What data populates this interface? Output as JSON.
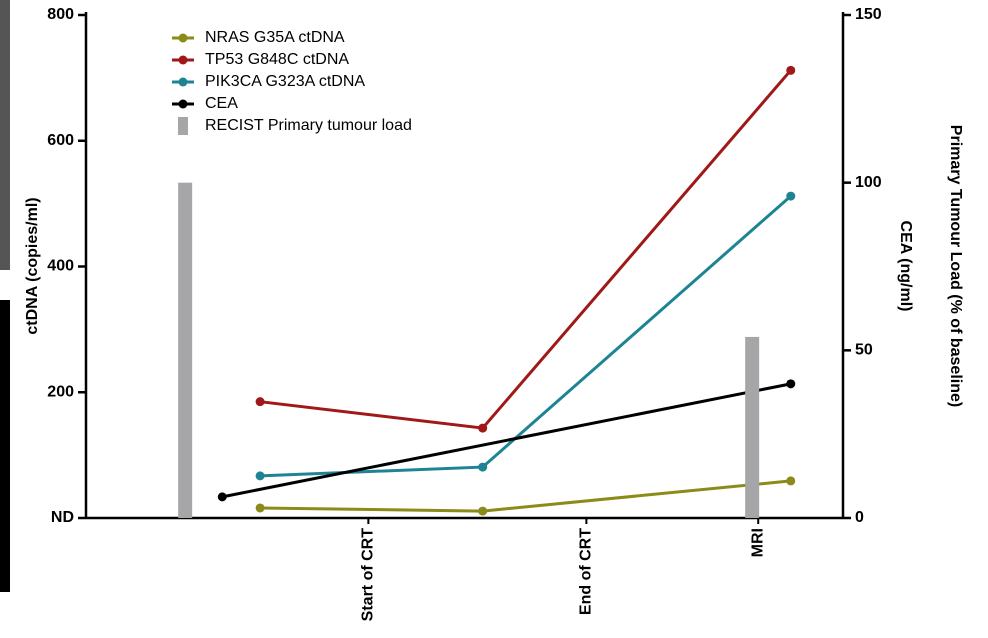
{
  "chart_data": {
    "type": "combo",
    "ylabel": "ctDNA (copies/ml)",
    "y2label": [
      "Primary Tumour Load (% of baseline)",
      "CEA (ng/ml)"
    ],
    "xlim": [
      0,
      100
    ],
    "xticks": [
      {
        "value": 37.3,
        "label": "Start of CRT"
      },
      {
        "value": 66.1,
        "label": "End of CRT"
      },
      {
        "value": 88.8,
        "label": "MRI"
      }
    ],
    "ylim": [
      0,
      800
    ],
    "yticks": [
      {
        "value": 0,
        "label": "ND"
      },
      200,
      400,
      600,
      800
    ],
    "y2lim": [
      0,
      150
    ],
    "y2ticks": [
      0,
      50,
      100,
      150
    ],
    "series": [
      {
        "name": "NRAS G35A ctDNA",
        "type": "line",
        "color": "#8b8b1a",
        "x": [
          23.0,
          52.4,
          93.1
        ],
        "values": [
          16,
          11,
          59
        ]
      },
      {
        "name": "TP53 G848C ctDNA",
        "type": "line",
        "color": "#a01818",
        "x": [
          23.0,
          52.4,
          93.1
        ],
        "values": [
          185,
          143,
          712
        ]
      },
      {
        "name": "PIK3CA G323A ctDNA",
        "type": "line",
        "color": "#1e8494",
        "x": [
          23.0,
          52.4,
          93.1
        ],
        "values": [
          67,
          81,
          512
        ]
      },
      {
        "name": "CEA",
        "type": "line",
        "axis": "y2",
        "color": "#000000",
        "x": [
          18.0,
          93.1
        ],
        "values": [
          6.3,
          40
        ]
      },
      {
        "name": "RECIST Primary tumour load",
        "type": "bar",
        "axis": "y2",
        "color": "#a6a6a8",
        "x": [
          13.1,
          88.0
        ],
        "values": [
          100,
          54
        ]
      }
    ]
  }
}
